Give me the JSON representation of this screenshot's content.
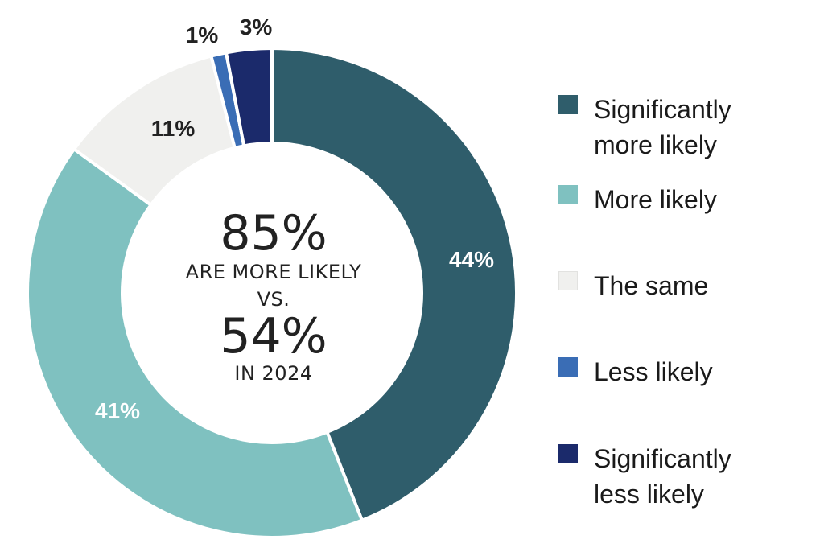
{
  "chart_data": {
    "type": "pie",
    "variant": "donut",
    "categories": [
      "Significantly more likely",
      "More likely",
      "The same",
      "Less likely",
      "Significantly less likely"
    ],
    "values": [
      44,
      41,
      11,
      1,
      3
    ],
    "value_labels": [
      "44%",
      "41%",
      "11%",
      "1%",
      "3%"
    ],
    "colors": [
      "#2f5d6b",
      "#7fc1c0",
      "#f0f0ee",
      "#3a6db5",
      "#1b2a6b"
    ],
    "label_colors": [
      "#ffffff",
      "#ffffff",
      "#222222",
      "#222222",
      "#222222"
    ],
    "legend_position": "right",
    "center_text": {
      "value_1": "85%",
      "line_1": "ARE MORE LIKELY",
      "line_2": "VS.",
      "value_2": "54%",
      "line_3": "IN 2024"
    }
  },
  "legend": {
    "items": [
      {
        "label": "Significantly\nmore likely",
        "color": "#2f5d6b"
      },
      {
        "label": "More likely",
        "color": "#7fc1c0"
      },
      {
        "label": "The same",
        "color": "#f0f0ee"
      },
      {
        "label": "Less likely",
        "color": "#3a6db5"
      },
      {
        "label": "Significantly\nless likely",
        "color": "#1b2a6b"
      }
    ]
  }
}
